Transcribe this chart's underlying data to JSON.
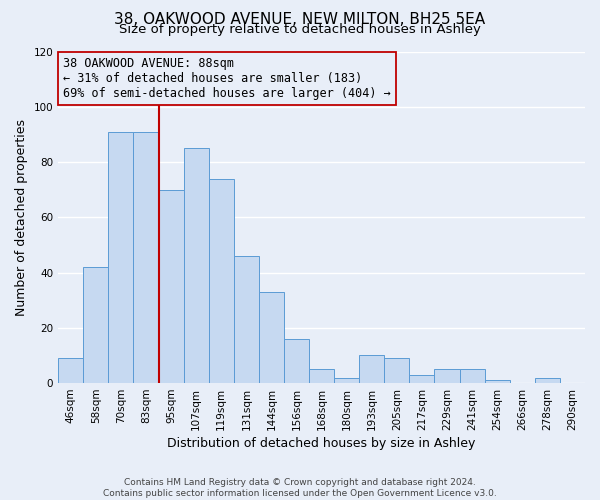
{
  "title": "38, OAKWOOD AVENUE, NEW MILTON, BH25 5EA",
  "subtitle": "Size of property relative to detached houses in Ashley",
  "xlabel": "Distribution of detached houses by size in Ashley",
  "ylabel": "Number of detached properties",
  "bin_labels": [
    "46sqm",
    "58sqm",
    "70sqm",
    "83sqm",
    "95sqm",
    "107sqm",
    "119sqm",
    "131sqm",
    "144sqm",
    "156sqm",
    "168sqm",
    "180sqm",
    "193sqm",
    "205sqm",
    "217sqm",
    "229sqm",
    "241sqm",
    "254sqm",
    "266sqm",
    "278sqm",
    "290sqm"
  ],
  "bar_heights": [
    9,
    42,
    91,
    91,
    70,
    85,
    74,
    46,
    33,
    16,
    5,
    2,
    10,
    9,
    3,
    5,
    5,
    1,
    0,
    2,
    0
  ],
  "bar_color": "#c6d9f1",
  "bar_edge_color": "#5b9bd5",
  "vline_x_index": 4,
  "vline_color": "#c00000",
  "annotation_line1": "38 OAKWOOD AVENUE: 88sqm",
  "annotation_line2": "← 31% of detached houses are smaller (183)",
  "annotation_line3": "69% of semi-detached houses are larger (404) →",
  "annotation_box_edge": "#c00000",
  "ylim": [
    0,
    120
  ],
  "yticks": [
    0,
    20,
    40,
    60,
    80,
    100,
    120
  ],
  "footnote": "Contains HM Land Registry data © Crown copyright and database right 2024.\nContains public sector information licensed under the Open Government Licence v3.0.",
  "bg_color": "#e8eef8",
  "plot_bg_color": "#e8eef8",
  "grid_color": "#ffffff",
  "title_fontsize": 11,
  "subtitle_fontsize": 9.5,
  "axis_label_fontsize": 9,
  "tick_fontsize": 7.5,
  "annotation_fontsize": 8.5,
  "footnote_fontsize": 6.5
}
